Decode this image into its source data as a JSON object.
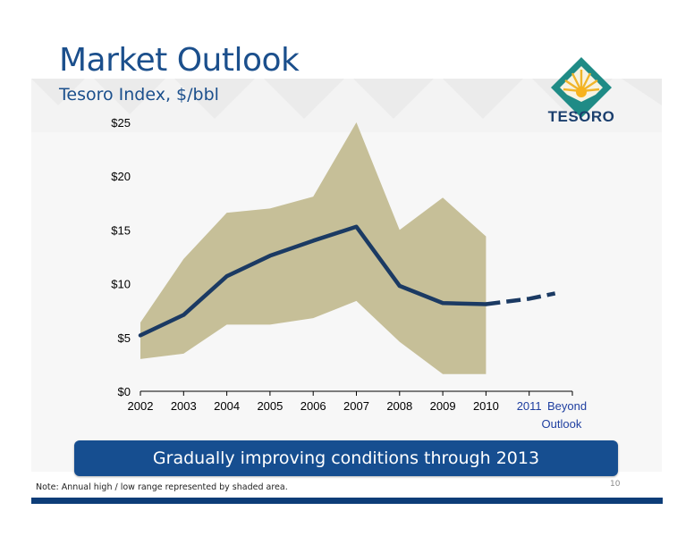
{
  "slide": {
    "title": "Market Outlook",
    "subtitle": "Tesoro Index, $/bbl",
    "logo_text": "TESORO",
    "banner": "Gradually improving conditions through 2013",
    "note": "Note: Annual high / low range represented by shaded area.",
    "page_number": "10"
  },
  "colors": {
    "title": "#1b4f8c",
    "band": "#c6bf98",
    "line": "#1b3a63",
    "banner": "#164e90",
    "outlook_text": "#1f3fa0",
    "bottom_rule": "#0d3d78"
  },
  "chart_data": {
    "type": "line",
    "categories": [
      "2002",
      "2003",
      "2004",
      "2005",
      "2006",
      "2007",
      "2008",
      "2009",
      "2010",
      "2011",
      "Beyond"
    ],
    "outlook_labels": {
      "x_2011": "2011",
      "x_beyond": "Beyond",
      "caption": "Outlook"
    },
    "yticks": [
      "$0",
      "$5",
      "$10",
      "$15",
      "$20",
      "$25"
    ],
    "ylim": [
      0,
      25
    ],
    "series": [
      {
        "style": "solid",
        "x": [
          "2002",
          "2003",
          "2004",
          "2005",
          "2006",
          "2007",
          "2008",
          "2009",
          "2010"
        ],
        "values": [
          5.2,
          7.1,
          10.7,
          12.6,
          14.0,
          15.3,
          9.8,
          8.2,
          8.1
        ]
      },
      {
        "style": "dashed",
        "x": [
          "2010",
          "2011",
          "Beyond"
        ],
        "values": [
          8.1,
          8.6,
          9.1
        ]
      }
    ],
    "range": {
      "x": [
        "2002",
        "2003",
        "2004",
        "2005",
        "2006",
        "2007",
        "2008",
        "2009",
        "2010"
      ],
      "high": [
        6.4,
        12.3,
        16.6,
        17.0,
        18.1,
        25.0,
        15.0,
        18.0,
        14.4
      ],
      "low": [
        3.0,
        3.5,
        6.2,
        6.2,
        6.8,
        8.4,
        4.6,
        1.6,
        1.6
      ]
    },
    "grid": false
  }
}
